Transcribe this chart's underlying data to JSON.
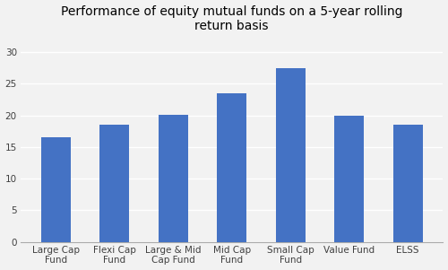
{
  "title": "Performance of equity mutual funds on a 5-year rolling\nreturn basis",
  "categories": [
    "Large Cap\nFund",
    "Flexi Cap\nFund",
    "Large & Mid\nCap Fund",
    "Mid Cap\nFund",
    "Small Cap\nFund",
    "Value Fund",
    "ELSS"
  ],
  "values": [
    16.5,
    18.5,
    20.1,
    23.5,
    27.5,
    20.0,
    18.5
  ],
  "bar_color": "#4472C4",
  "ylim": [
    0,
    32
  ],
  "yticks": [
    0,
    5,
    10,
    15,
    20,
    25,
    30
  ],
  "background_color": "#F2F2F2",
  "plot_bg_color": "#F2F2F2",
  "grid_color": "#FFFFFF",
  "title_fontsize": 10,
  "tick_fontsize": 7.5,
  "bar_width": 0.5
}
